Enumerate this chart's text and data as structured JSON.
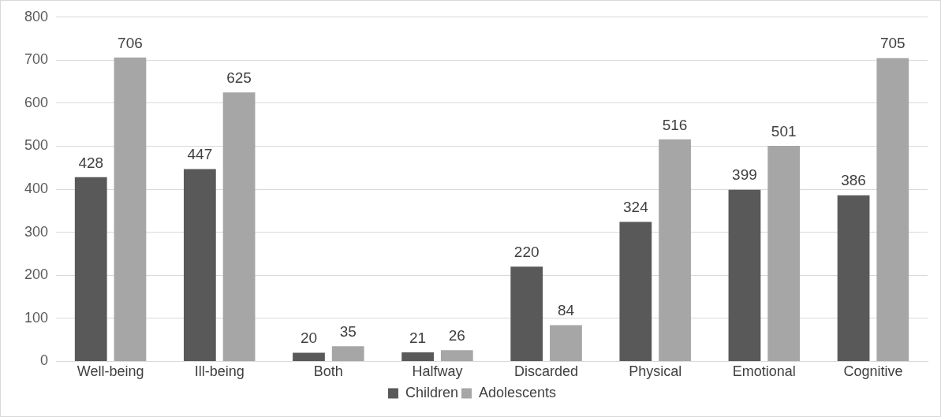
{
  "chart_data": {
    "type": "bar",
    "categories": [
      "Well-being",
      "Ill-being",
      "Both",
      "Halfway",
      "Discarded",
      "Physical",
      "Emotional",
      "Cognitive"
    ],
    "series": [
      {
        "name": "Children",
        "color": "#595959",
        "values": [
          428,
          447,
          20,
          21,
          220,
          324,
          399,
          386
        ]
      },
      {
        "name": "Adolescents",
        "color": "#a6a6a6",
        "values": [
          706,
          625,
          35,
          26,
          84,
          516,
          501,
          705
        ]
      }
    ],
    "ylim": [
      0,
      800
    ],
    "yticks": [
      0,
      100,
      200,
      300,
      400,
      500,
      600,
      700,
      800
    ],
    "grid": "y",
    "legend": "bottom",
    "data_labels": true
  }
}
